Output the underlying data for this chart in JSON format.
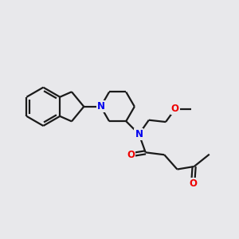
{
  "background_color": "#e8e8eb",
  "bond_color": "#1a1a1a",
  "N_color": "#0000ee",
  "O_color": "#ee0000",
  "line_width": 1.6,
  "figsize": [
    3.0,
    3.0
  ],
  "dpi": 100,
  "xlim": [
    0,
    10
  ],
  "ylim": [
    0,
    10
  ],
  "font_size": 8.5
}
